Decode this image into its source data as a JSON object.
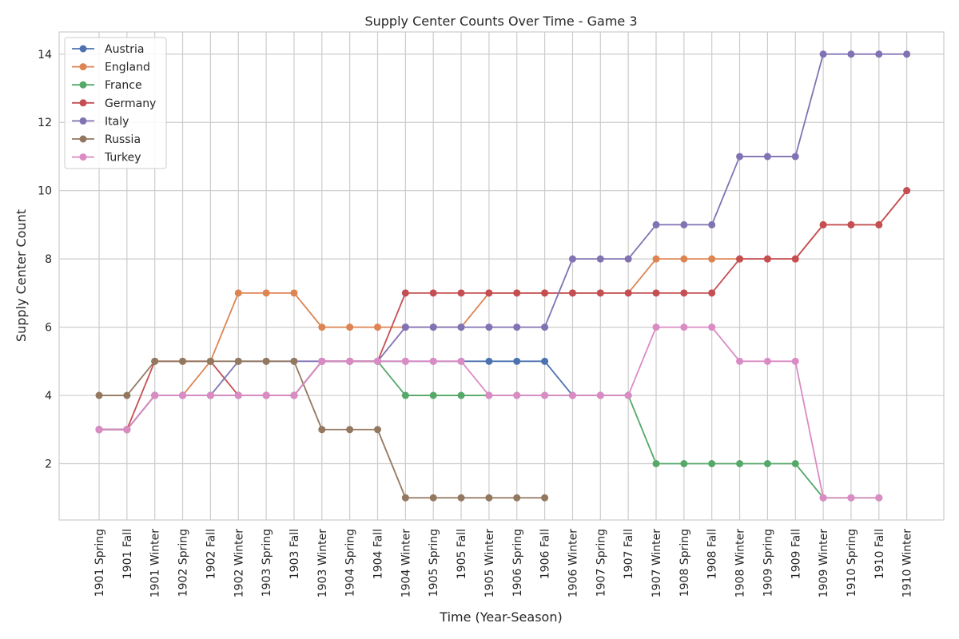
{
  "chart_data": {
    "type": "line",
    "title": "Supply Center Counts Over Time - Game 3",
    "xlabel": "Time (Year-Season)",
    "ylabel": "Supply Center Count",
    "ylim": [
      0.35,
      14.65
    ],
    "yticks": [
      2,
      4,
      6,
      8,
      10,
      12,
      14
    ],
    "grid": true,
    "legend_position": "top-left",
    "categories": [
      "1901 Spring",
      "1901 Fall",
      "1901 Winter",
      "1902 Spring",
      "1902 Fall",
      "1902 Winter",
      "1903 Spring",
      "1903 Fall",
      "1903 Winter",
      "1904 Spring",
      "1904 Fall",
      "1904 Winter",
      "1905 Spring",
      "1905 Fall",
      "1905 Winter",
      "1906 Spring",
      "1906 Fall",
      "1906 Winter",
      "1907 Spring",
      "1907 Fall",
      "1907 Winter",
      "1908 Spring",
      "1908 Fall",
      "1908 Winter",
      "1909 Spring",
      "1909 Fall",
      "1909 Winter",
      "1910 Spring",
      "1910 Fall",
      "1910 Winter"
    ],
    "series": [
      {
        "name": "Austria",
        "color": "#4c72b0",
        "values": [
          3,
          3,
          4,
          4,
          4,
          4,
          4,
          4,
          5,
          5,
          5,
          5,
          5,
          5,
          5,
          5,
          5,
          4,
          4,
          4,
          null,
          null,
          null,
          null,
          null,
          null,
          null,
          null,
          null,
          null
        ]
      },
      {
        "name": "England",
        "color": "#dd8452",
        "values": [
          3,
          3,
          4,
          4,
          5,
          7,
          7,
          7,
          6,
          6,
          6,
          6,
          6,
          6,
          7,
          7,
          7,
          7,
          7,
          7,
          8,
          8,
          8,
          8,
          8,
          8,
          9,
          9,
          9,
          10
        ]
      },
      {
        "name": "France",
        "color": "#55a868",
        "values": [
          3,
          3,
          4,
          4,
          4,
          4,
          4,
          4,
          5,
          5,
          5,
          4,
          4,
          4,
          4,
          4,
          4,
          4,
          4,
          4,
          2,
          2,
          2,
          2,
          2,
          2,
          1,
          1,
          1,
          null
        ]
      },
      {
        "name": "Germany",
        "color": "#c44e52",
        "values": [
          3,
          3,
          5,
          5,
          5,
          4,
          4,
          4,
          5,
          5,
          5,
          7,
          7,
          7,
          7,
          7,
          7,
          7,
          7,
          7,
          7,
          7,
          7,
          8,
          8,
          8,
          9,
          9,
          9,
          10
        ]
      },
      {
        "name": "Italy",
        "color": "#8172b3",
        "values": [
          3,
          3,
          4,
          4,
          4,
          5,
          5,
          5,
          5,
          5,
          5,
          6,
          6,
          6,
          6,
          6,
          6,
          8,
          8,
          8,
          9,
          9,
          9,
          11,
          11,
          11,
          14,
          14,
          14,
          14
        ]
      },
      {
        "name": "Russia",
        "color": "#937860",
        "values": [
          4,
          4,
          5,
          5,
          5,
          5,
          5,
          5,
          3,
          3,
          3,
          1,
          1,
          1,
          1,
          1,
          1,
          null,
          null,
          null,
          null,
          null,
          null,
          null,
          null,
          null,
          null,
          null,
          null,
          null
        ]
      },
      {
        "name": "Turkey",
        "color": "#da8bc3",
        "values": [
          3,
          3,
          4,
          4,
          4,
          4,
          4,
          4,
          5,
          5,
          5,
          5,
          5,
          5,
          4,
          4,
          4,
          4,
          4,
          4,
          6,
          6,
          6,
          5,
          5,
          5,
          1,
          1,
          1,
          null
        ]
      }
    ]
  }
}
